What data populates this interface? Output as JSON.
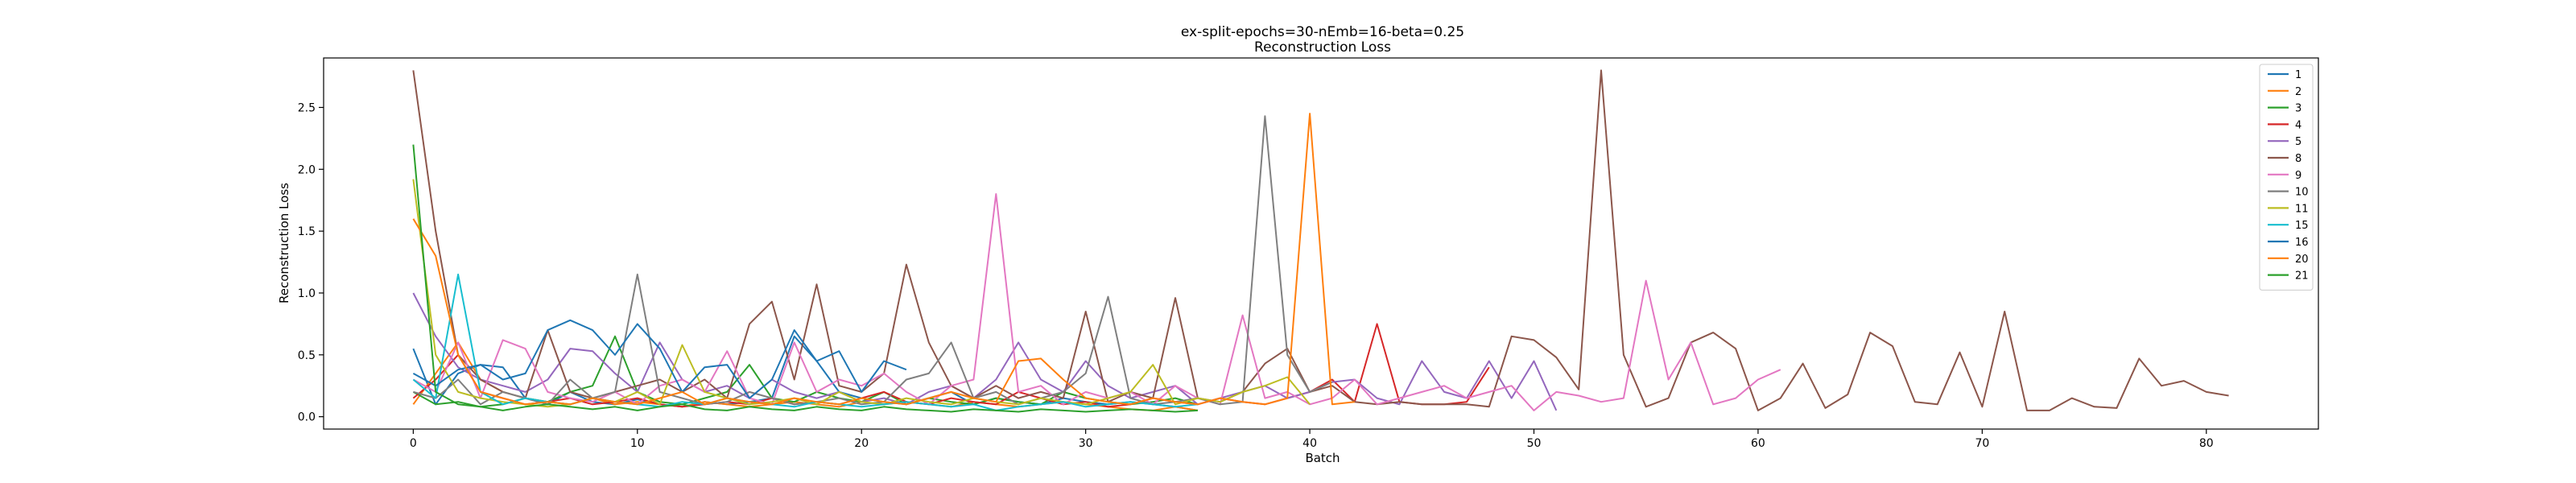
{
  "chart_data": {
    "type": "line",
    "title": "ex-split-epochs=30-nEmb=16-beta=0.25",
    "subtitle": "Reconstruction Loss",
    "xlabel": "Batch",
    "ylabel": "Reconstruction Loss",
    "xlim": [
      -4,
      85
    ],
    "ylim": [
      -0.1,
      2.9
    ],
    "xticks": [
      0,
      10,
      20,
      30,
      40,
      50,
      60,
      70,
      80
    ],
    "yticks": [
      0.0,
      0.5,
      1.0,
      1.5,
      2.0,
      2.5
    ],
    "grid": false,
    "legend_position": "top-right",
    "series": [
      {
        "name": "1",
        "color": "#1f77b4",
        "values": [
          0.55,
          0.1,
          0.35,
          0.42,
          0.4,
          0.15,
          0.1,
          0.2,
          0.12,
          0.1,
          0.14,
          0.1,
          0.08,
          0.12,
          0.1,
          0.12,
          0.15,
          0.65,
          0.45,
          0.2,
          0.15,
          0.12,
          0.1,
          0.15,
          0.2,
          0.1,
          0.15,
          0.12,
          0.1,
          0.15,
          0.12,
          0.1,
          0.12,
          0.1,
          0.08,
          0.05
        ]
      },
      {
        "name": "2",
        "color": "#ff7f0e",
        "values": [
          0.1,
          0.35,
          0.6,
          0.3,
          0.2,
          0.15,
          0.12,
          0.1,
          0.15,
          0.1,
          0.12,
          0.1,
          0.08,
          0.12,
          0.1,
          0.08,
          0.1,
          0.12,
          0.1,
          0.08,
          0.12,
          0.1,
          0.12,
          0.1,
          0.08,
          0.12,
          0.1,
          0.08,
          0.1,
          0.12,
          0.1,
          0.08,
          0.06,
          0.05,
          0.08,
          0.05
        ]
      },
      {
        "name": "3",
        "color": "#2ca02c",
        "values": [
          0.2,
          0.1,
          0.12,
          0.08,
          0.1,
          0.15,
          0.12,
          0.2,
          0.25,
          0.65,
          0.2,
          0.12,
          0.1,
          0.15,
          0.2,
          0.42,
          0.15,
          0.12,
          0.2,
          0.15,
          0.12,
          0.2,
          0.1,
          0.15,
          0.12,
          0.1,
          0.15,
          0.12,
          0.1,
          0.2,
          0.15,
          0.12,
          0.1,
          0.12,
          0.15,
          0.1
        ]
      },
      {
        "name": "4",
        "color": "#d62728",
        "values": [
          0.15,
          0.3,
          0.5,
          0.2,
          0.15,
          0.1,
          0.12,
          0.15,
          0.1,
          0.12,
          0.15,
          0.1,
          0.08,
          0.1,
          0.12,
          0.1,
          0.15,
          0.1,
          0.12,
          0.1,
          0.15,
          0.2,
          0.12,
          0.1,
          0.15,
          0.12,
          0.1,
          0.2,
          0.15,
          0.1,
          0.12,
          0.08,
          0.1,
          0.15,
          0.12,
          0.1,
          0.15,
          0.12,
          0.1,
          0.15,
          0.2,
          0.3,
          0.12,
          0.75,
          0.12,
          0.1,
          0.1,
          0.12,
          0.4
        ]
      },
      {
        "name": "5",
        "color": "#9467bd",
        "values": [
          1.0,
          0.65,
          0.4,
          0.3,
          0.25,
          0.2,
          0.3,
          0.55,
          0.53,
          0.35,
          0.2,
          0.6,
          0.3,
          0.2,
          0.25,
          0.15,
          0.3,
          0.2,
          0.15,
          0.2,
          0.12,
          0.15,
          0.1,
          0.2,
          0.25,
          0.15,
          0.3,
          0.6,
          0.3,
          0.2,
          0.45,
          0.25,
          0.15,
          0.2,
          0.25,
          0.1,
          0.15,
          0.2,
          0.25,
          0.15,
          0.2,
          0.28,
          0.3,
          0.15,
          0.1,
          0.45,
          0.2,
          0.15,
          0.45,
          0.15,
          0.45,
          0.05
        ]
      },
      {
        "name": "8",
        "color": "#8c564b",
        "values": [
          2.8,
          1.5,
          0.5,
          0.3,
          0.2,
          0.15,
          0.7,
          0.2,
          0.15,
          0.2,
          0.25,
          0.3,
          0.2,
          0.3,
          0.15,
          0.75,
          0.93,
          0.3,
          1.07,
          0.25,
          0.2,
          0.35,
          1.23,
          0.6,
          0.25,
          0.15,
          0.25,
          0.15,
          0.2,
          0.15,
          0.85,
          0.12,
          0.2,
          0.15,
          0.96,
          0.15,
          0.12,
          0.2,
          0.43,
          0.55,
          0.2,
          0.25,
          0.12,
          0.1,
          0.12,
          0.1,
          0.1,
          0.1,
          0.08,
          0.65,
          0.62,
          0.48,
          0.22,
          2.8,
          0.5,
          0.08,
          0.15,
          0.6,
          0.68,
          0.55,
          0.05,
          0.15,
          0.43,
          0.07,
          0.18,
          0.68,
          0.57,
          0.12,
          0.1,
          0.52,
          0.08,
          0.85,
          0.05,
          0.05,
          0.15,
          0.08,
          0.07,
          0.47,
          0.25,
          0.29,
          0.2,
          0.17
        ]
      },
      {
        "name": "9",
        "color": "#e377c2",
        "values": [
          0.3,
          0.2,
          0.6,
          0.15,
          0.62,
          0.55,
          0.2,
          0.15,
          0.12,
          0.2,
          0.1,
          0.25,
          0.3,
          0.2,
          0.53,
          0.15,
          0.1,
          0.6,
          0.2,
          0.3,
          0.25,
          0.35,
          0.2,
          0.1,
          0.25,
          0.3,
          1.8,
          0.2,
          0.25,
          0.1,
          0.2,
          0.15,
          0.2,
          0.1,
          0.25,
          0.15,
          0.1,
          0.82,
          0.15,
          0.2,
          0.1,
          0.15,
          0.3,
          0.1,
          0.15,
          0.2,
          0.25,
          0.15,
          0.2,
          0.25,
          0.05,
          0.2,
          0.17,
          0.12,
          0.15,
          1.1,
          0.3,
          0.6,
          0.1,
          0.15,
          0.3,
          0.38
        ]
      },
      {
        "name": "10",
        "color": "#7f7f7f",
        "values": [
          0.2,
          0.15,
          0.3,
          0.1,
          0.2,
          0.15,
          0.1,
          0.3,
          0.15,
          0.2,
          1.15,
          0.2,
          0.15,
          0.1,
          0.12,
          0.2,
          0.15,
          0.1,
          0.12,
          0.15,
          0.1,
          0.12,
          0.3,
          0.35,
          0.6,
          0.15,
          0.2,
          0.1,
          0.15,
          0.2,
          0.35,
          0.97,
          0.15,
          0.1,
          0.12,
          0.15,
          0.1,
          0.12,
          2.43,
          0.5,
          0.2,
          0.28
        ]
      },
      {
        "name": "11",
        "color": "#bcbd22",
        "values": [
          1.92,
          0.5,
          0.2,
          0.15,
          0.12,
          0.1,
          0.08,
          0.1,
          0.15,
          0.12,
          0.2,
          0.1,
          0.58,
          0.2,
          0.15,
          0.1,
          0.12,
          0.15,
          0.1,
          0.2,
          0.12,
          0.1,
          0.15,
          0.12,
          0.1,
          0.15,
          0.12,
          0.1,
          0.15,
          0.12,
          0.1,
          0.15,
          0.2,
          0.42,
          0.1,
          0.15,
          0.12,
          0.2,
          0.25,
          0.32,
          0.1
        ]
      },
      {
        "name": "15",
        "color": "#17becf",
        "values": [
          0.3,
          0.15,
          1.15,
          0.2,
          0.1,
          0.15,
          0.12,
          0.1,
          0.15,
          0.12,
          0.1,
          0.08,
          0.12,
          0.1,
          0.15,
          0.12,
          0.1,
          0.08,
          0.12,
          0.1,
          0.08,
          0.1,
          0.12,
          0.1,
          0.08,
          0.1,
          0.05,
          0.08,
          0.1,
          0.12,
          0.08,
          0.1,
          0.12,
          0.1,
          0.08,
          0.1
        ]
      },
      {
        "name": "16",
        "color": "#1f77b4",
        "values": [
          0.35,
          0.25,
          0.38,
          0.42,
          0.3,
          0.35,
          0.7,
          0.78,
          0.7,
          0.5,
          0.75,
          0.55,
          0.2,
          0.4,
          0.42,
          0.15,
          0.3,
          0.7,
          0.45,
          0.53,
          0.2,
          0.45,
          0.38
        ]
      },
      {
        "name": "20",
        "color": "#ff7f0e",
        "values": [
          1.6,
          1.3,
          0.5,
          0.2,
          0.15,
          0.1,
          0.12,
          0.1,
          0.15,
          0.12,
          0.1,
          0.15,
          0.2,
          0.1,
          0.15,
          0.12,
          0.1,
          0.15,
          0.12,
          0.1,
          0.15,
          0.12,
          0.1,
          0.15,
          0.2,
          0.15,
          0.12,
          0.45,
          0.47,
          0.3,
          0.15,
          0.12,
          0.1,
          0.15,
          0.12,
          0.1,
          0.15,
          0.12,
          0.1,
          0.15,
          2.45,
          0.1,
          0.12
        ]
      },
      {
        "name": "21",
        "color": "#2ca02c",
        "values": [
          2.2,
          0.2,
          0.1,
          0.08,
          0.05,
          0.08,
          0.1,
          0.08,
          0.06,
          0.08,
          0.05,
          0.08,
          0.1,
          0.06,
          0.05,
          0.08,
          0.06,
          0.05,
          0.08,
          0.06,
          0.05,
          0.08,
          0.06,
          0.05,
          0.04,
          0.06,
          0.05,
          0.04,
          0.06,
          0.05,
          0.04,
          0.05,
          0.06,
          0.05,
          0.04,
          0.05
        ]
      }
    ]
  }
}
